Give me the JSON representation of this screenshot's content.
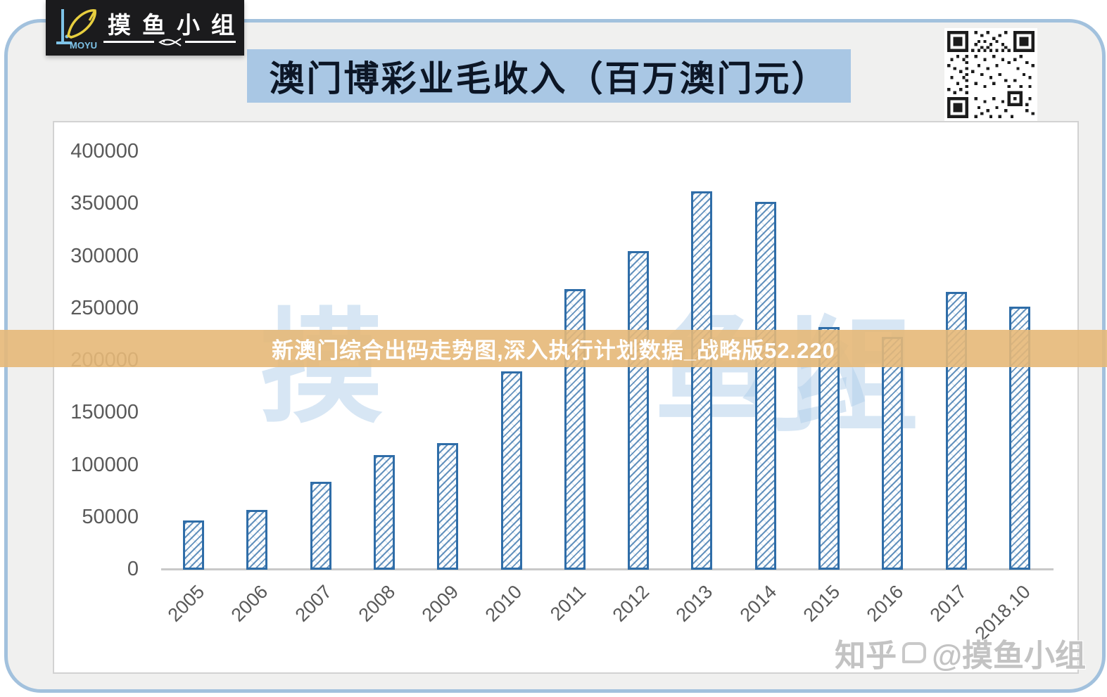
{
  "logo": {
    "brand": "MOYU",
    "group_name": "摸鱼小组"
  },
  "title_banner": {
    "text": "澳门博彩业毛收入（百万澳门元）",
    "bg": "#a9c7e4"
  },
  "overlay_banner": {
    "text": "新澳门综合出码走势图,深入执行计划数据_战略版52.220",
    "bg": "#e5b878"
  },
  "watermarks": {
    "plot_text": "摸鱼小组",
    "site": "知乎",
    "handle": "@摸鱼小组"
  },
  "chart_data": {
    "type": "bar",
    "title": "澳门博彩业毛收入（百万澳门元）",
    "categories": [
      "2005",
      "2006",
      "2007",
      "2008",
      "2009",
      "2010",
      "2011",
      "2012",
      "2013",
      "2014",
      "2015",
      "2016",
      "2017",
      "2018.10"
    ],
    "values": [
      47000,
      57500,
      84500,
      110000,
      121000,
      190000,
      269000,
      305000,
      362000,
      352000,
      232000,
      223000,
      266000,
      252000
    ],
    "xlabel": "",
    "ylabel": "",
    "ylim": [
      0,
      400000
    ],
    "y_ticks": [
      400000,
      350000,
      300000,
      250000,
      200000,
      150000,
      100000,
      50000,
      0
    ],
    "grid": false,
    "legend_position": "none",
    "bar_border_color": "#2f6da8",
    "bar_fill_style": "diagonal-hatch"
  }
}
